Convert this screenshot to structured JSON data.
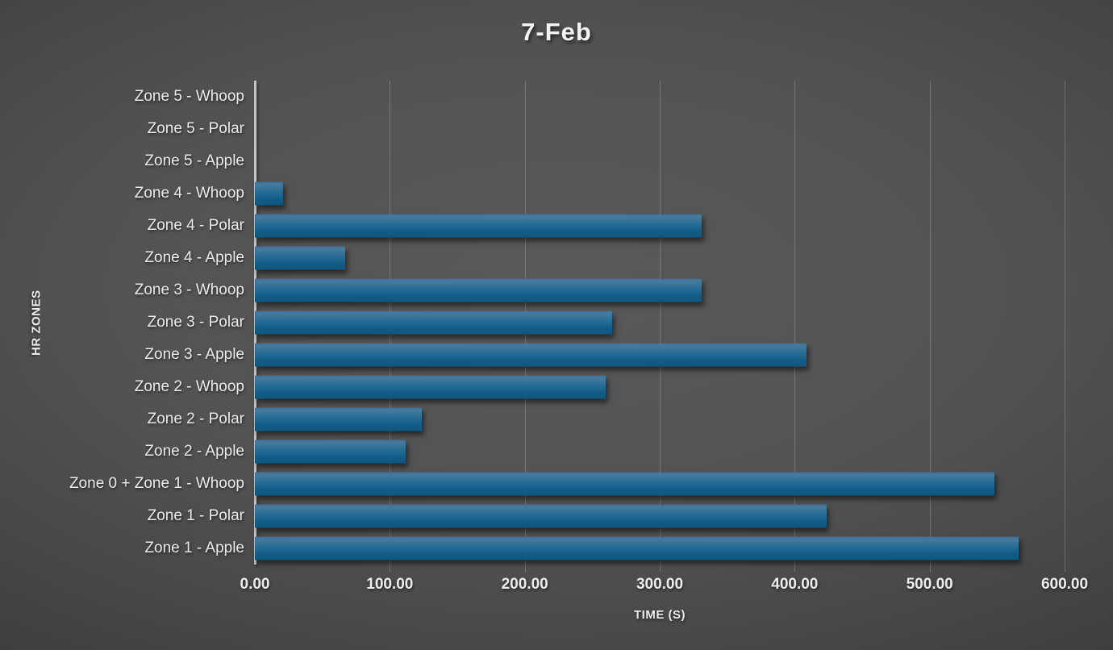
{
  "title": "7-Feb",
  "colors": {
    "background_center": "#595959",
    "background_edge": "#232323",
    "bar_top": "#457b9c",
    "bar_mid": "#276c95",
    "bar_bottom": "#0d567e",
    "axis_line": "#c3c3c3",
    "gridline": "rgba(255,255,255,0.20)",
    "text": "#ececec"
  },
  "chart_data": {
    "type": "bar",
    "orientation": "horizontal",
    "title": "7-Feb",
    "xlabel": "TIME (S)",
    "ylabel": "HR ZONES",
    "xlim": [
      0,
      600
    ],
    "x_ticks": [
      0,
      100,
      200,
      300,
      400,
      500,
      600
    ],
    "x_tick_labels": [
      "0.00",
      "100.00",
      "200.00",
      "300.00",
      "400.00",
      "500.00",
      "600.00"
    ],
    "grid": true,
    "legend": false,
    "categories": [
      "Zone 5 - Whoop",
      "Zone 5 - Polar",
      "Zone 5 - Apple",
      "Zone 4 - Whoop",
      "Zone 4 - Polar",
      "Zone 4 - Apple",
      "Zone 3 - Whoop",
      "Zone 3 - Polar",
      "Zone 3 - Apple",
      "Zone 2 - Whoop",
      "Zone 2 - Polar",
      "Zone 2 - Apple",
      "Zone 0 + Zone 1 - Whoop",
      "Zone 1 - Polar",
      "Zone 1 - Apple"
    ],
    "values": [
      0,
      0,
      0,
      21,
      331,
      67,
      331,
      265,
      409,
      260,
      124,
      112,
      548,
      424,
      566
    ]
  }
}
